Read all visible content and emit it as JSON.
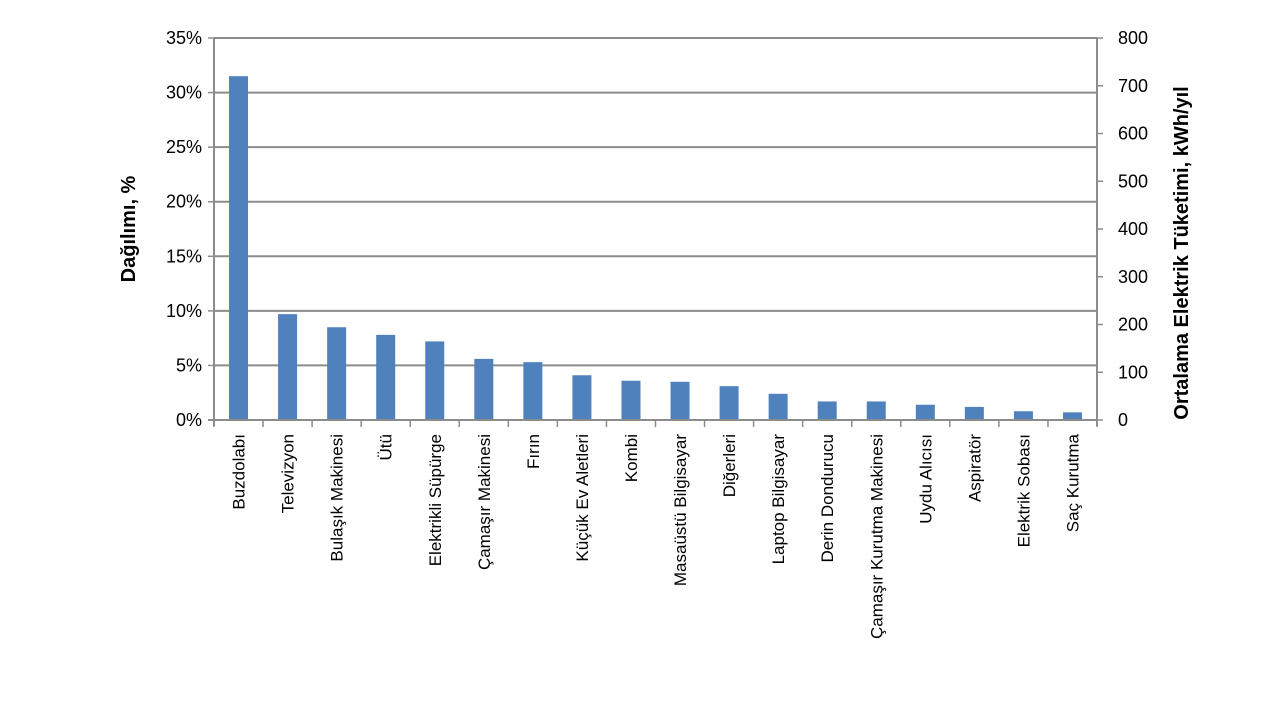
{
  "chart_data": {
    "type": "bar",
    "title": "",
    "ylabel": "Dağılımı, %",
    "ylabel_right": "Ortalama Elektrik Tüketimi, kWh/yıl",
    "xlabel": "",
    "ylim": [
      0,
      35
    ],
    "ylim_right": [
      0,
      800
    ],
    "yticks": [
      "0%",
      "5%",
      "10%",
      "15%",
      "20%",
      "25%",
      "30%",
      "35%"
    ],
    "yticks_right": [
      "0",
      "100",
      "200",
      "300",
      "400",
      "500",
      "600",
      "700",
      "800"
    ],
    "grid": true,
    "legend": "none",
    "bar_color": "#4F81BD",
    "categories": [
      "Buzdolabı",
      "Televizyon",
      "Bulaşık Makinesi",
      "Ütü",
      "Elektrikli Süpürge",
      "Çamaşır Makinesi",
      "Fırın",
      "Küçük Ev Aletleri",
      "Kombi",
      "Masaüstü Bilgisayar",
      "Diğerleri",
      "Laptop Bilgisayar",
      "Derin Dondurucu",
      "Çamaşır Kurutma Makinesi",
      "Uydu Alıcısı",
      "Aspiratör",
      "Elektrik Sobası",
      "Saç Kurutma"
    ],
    "values": [
      31.5,
      9.7,
      8.5,
      7.8,
      7.2,
      5.6,
      5.3,
      4.1,
      3.6,
      3.5,
      3.1,
      2.4,
      1.7,
      1.7,
      1.4,
      1.2,
      0.8,
      0.7
    ]
  }
}
